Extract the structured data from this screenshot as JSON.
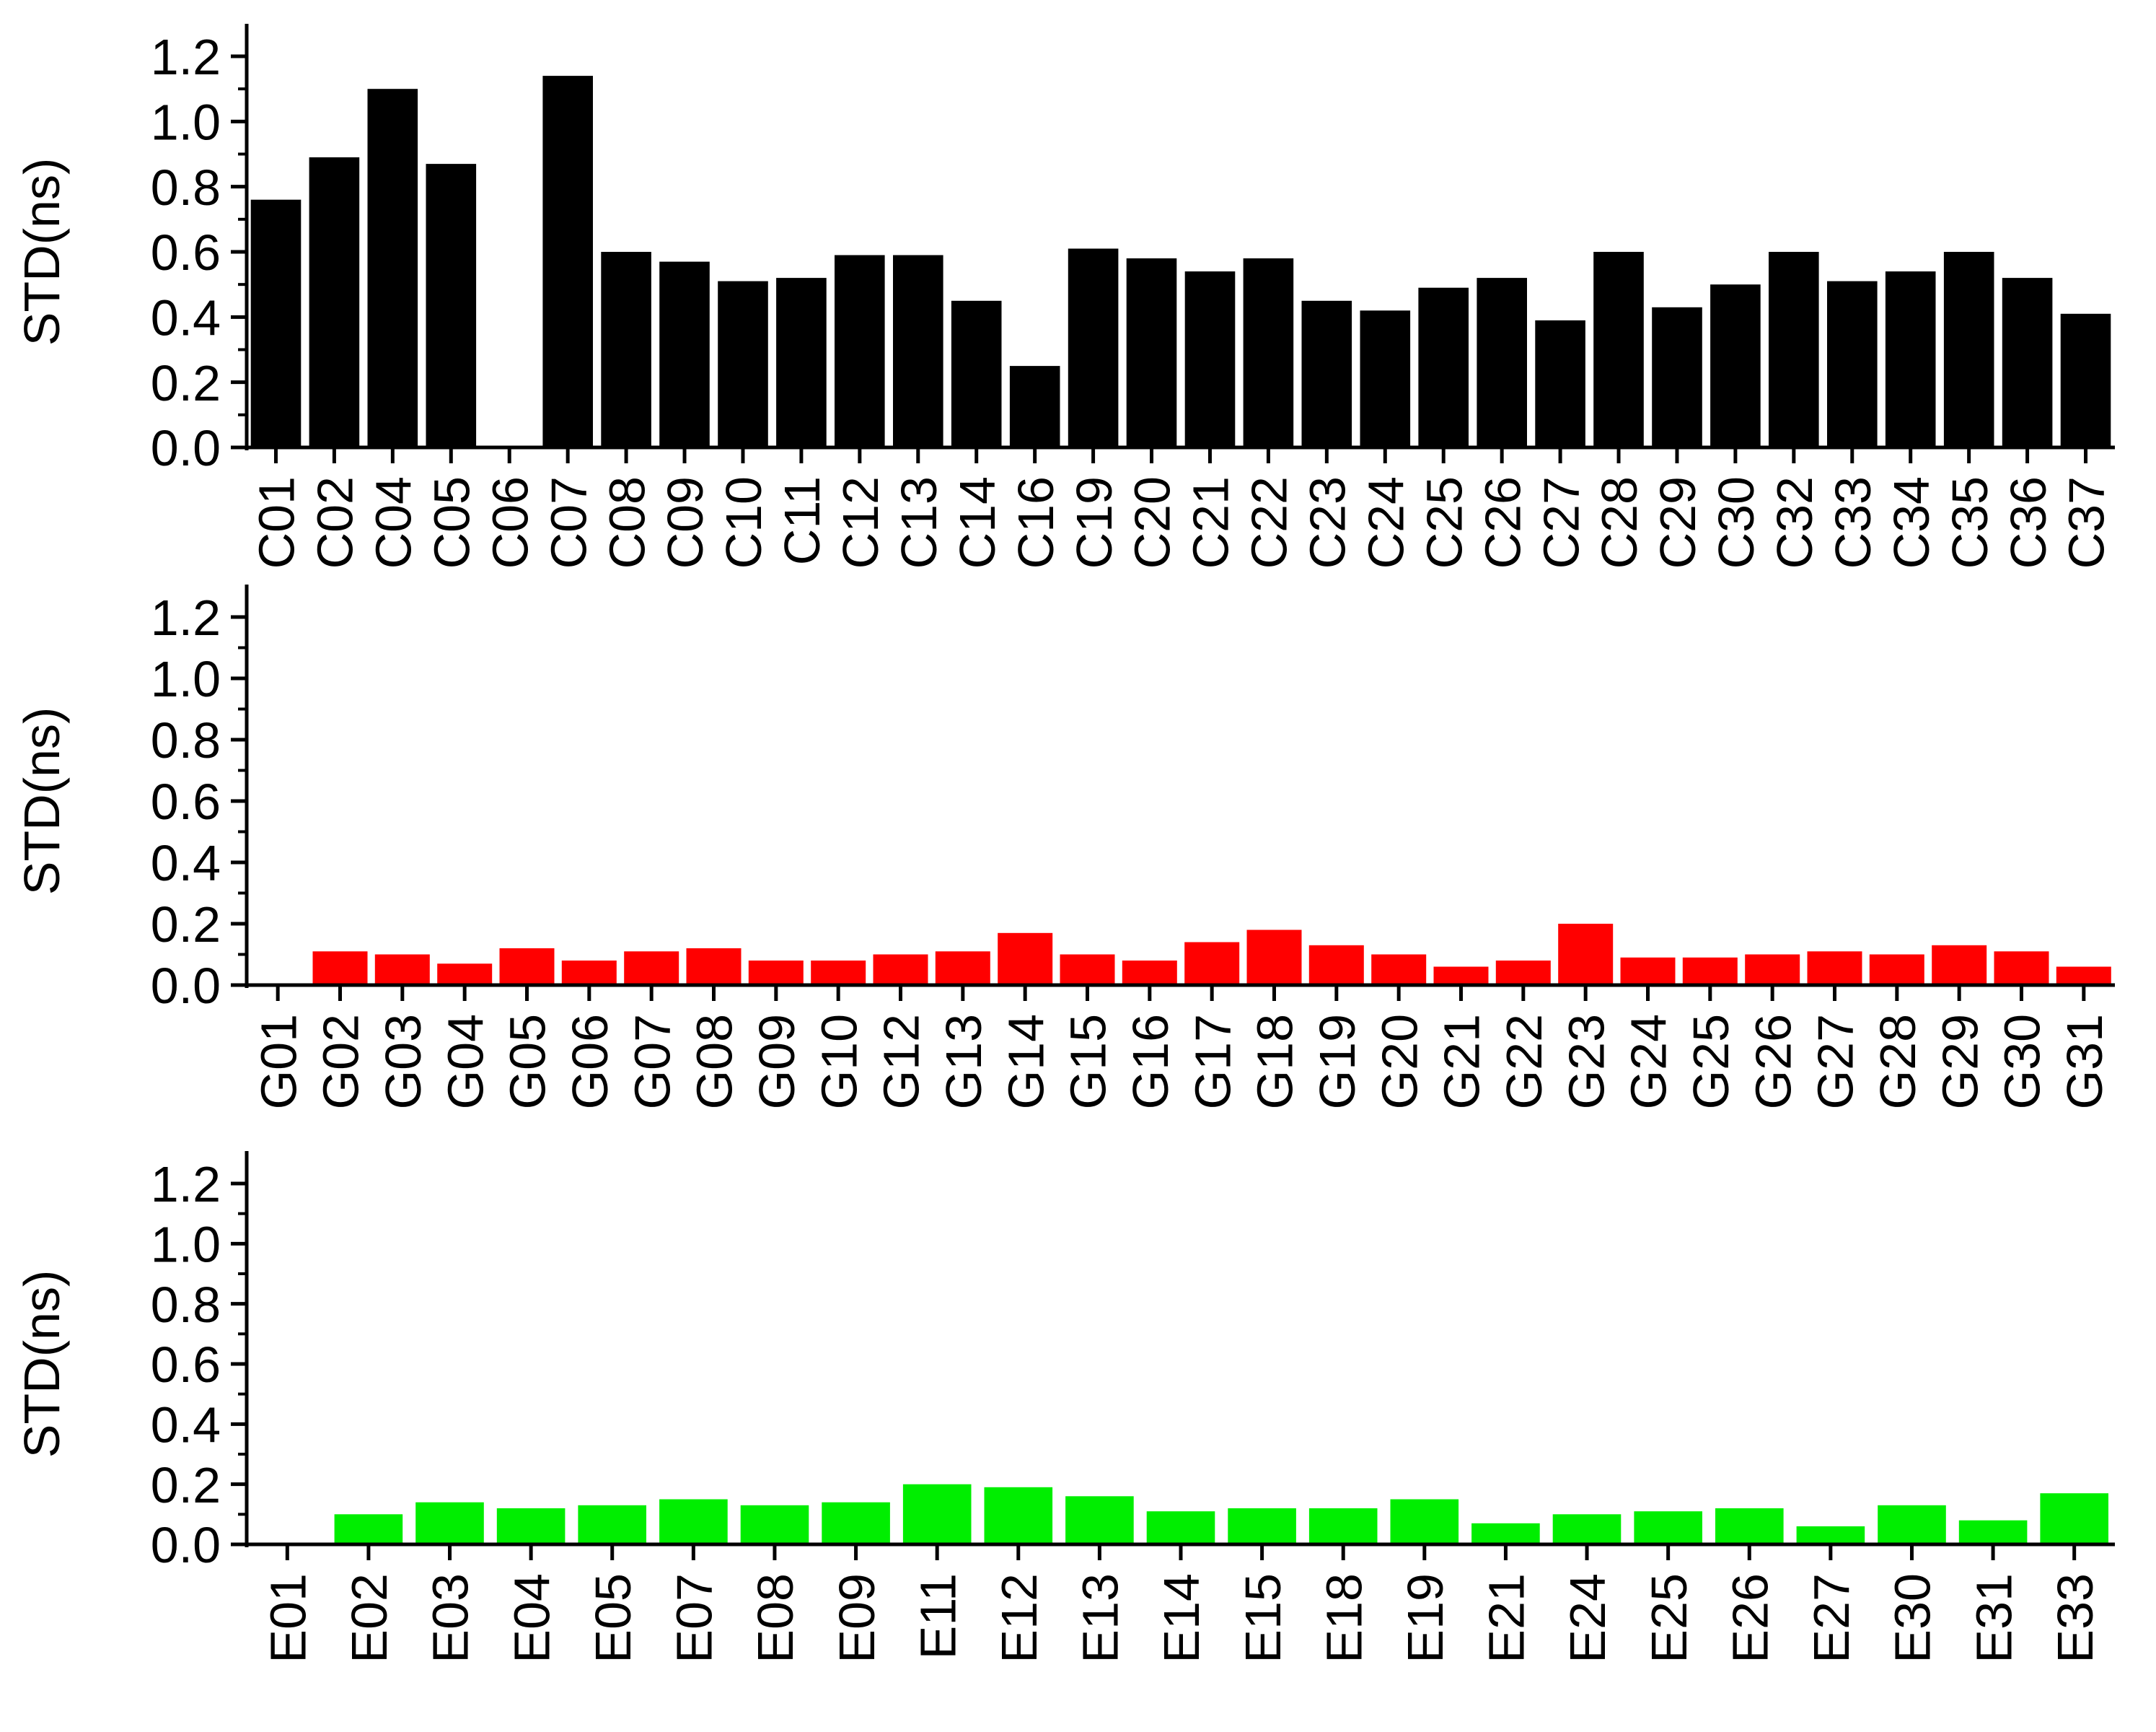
{
  "chart_data": [
    {
      "type": "bar",
      "ylabel": "STD(ns)",
      "xlabel": "",
      "ylim": [
        0,
        1.2
      ],
      "yticks": [
        "0.0",
        "0.2",
        "0.4",
        "0.6",
        "0.8",
        "1.0",
        "1.2"
      ],
      "color": "#000000",
      "categories": [
        "C01",
        "C02",
        "C04",
        "C05",
        "C06",
        "C07",
        "C08",
        "C09",
        "C10",
        "C11",
        "C12",
        "C13",
        "C14",
        "C16",
        "C19",
        "C20",
        "C21",
        "C22",
        "C23",
        "C24",
        "C25",
        "C26",
        "C27",
        "C28",
        "C29",
        "C30",
        "C32",
        "C33",
        "C34",
        "C35",
        "C36",
        "C37"
      ],
      "values": [
        0.76,
        0.89,
        1.1,
        0.87,
        0.0,
        1.14,
        0.6,
        0.57,
        0.51,
        0.52,
        0.59,
        0.59,
        0.45,
        0.25,
        0.61,
        0.58,
        0.54,
        0.58,
        0.45,
        0.42,
        0.49,
        0.52,
        0.39,
        0.6,
        0.43,
        0.5,
        0.6,
        0.51,
        0.54,
        0.6,
        0.52,
        0.41
      ]
    },
    {
      "type": "bar",
      "ylabel": "STD(ns)",
      "xlabel": "",
      "ylim": [
        0,
        1.2
      ],
      "yticks": [
        "0.0",
        "0.2",
        "0.4",
        "0.6",
        "0.8",
        "1.0",
        "1.2"
      ],
      "color": "#ff0000",
      "categories": [
        "G01",
        "G02",
        "G03",
        "G04",
        "G05",
        "G06",
        "G07",
        "G08",
        "G09",
        "G10",
        "G12",
        "G13",
        "G14",
        "G15",
        "G16",
        "G17",
        "G18",
        "G19",
        "G20",
        "G21",
        "G22",
        "G23",
        "G24",
        "G25",
        "G26",
        "G27",
        "G28",
        "G29",
        "G30",
        "G31"
      ],
      "values": [
        0.0,
        0.11,
        0.1,
        0.07,
        0.12,
        0.08,
        0.11,
        0.12,
        0.08,
        0.08,
        0.1,
        0.11,
        0.17,
        0.1,
        0.08,
        0.14,
        0.18,
        0.13,
        0.1,
        0.06,
        0.08,
        0.2,
        0.09,
        0.09,
        0.1,
        0.11,
        0.1,
        0.13,
        0.11,
        0.06
      ]
    },
    {
      "type": "bar",
      "ylabel": "STD(ns)",
      "xlabel": "",
      "ylim": [
        0,
        1.2
      ],
      "yticks": [
        "0.0",
        "0.2",
        "0.4",
        "0.6",
        "0.8",
        "1.0",
        "1.2"
      ],
      "color": "#00ee00",
      "categories": [
        "E01",
        "E02",
        "E03",
        "E04",
        "E05",
        "E07",
        "E08",
        "E09",
        "E11",
        "E12",
        "E13",
        "E14",
        "E15",
        "E18",
        "E19",
        "E21",
        "E24",
        "E25",
        "E26",
        "E27",
        "E30",
        "E31",
        "E33"
      ],
      "values": [
        0.0,
        0.1,
        0.14,
        0.12,
        0.13,
        0.15,
        0.13,
        0.14,
        0.2,
        0.19,
        0.16,
        0.11,
        0.12,
        0.12,
        0.15,
        0.07,
        0.1,
        0.11,
        0.12,
        0.06,
        0.13,
        0.08,
        0.17
      ]
    }
  ]
}
